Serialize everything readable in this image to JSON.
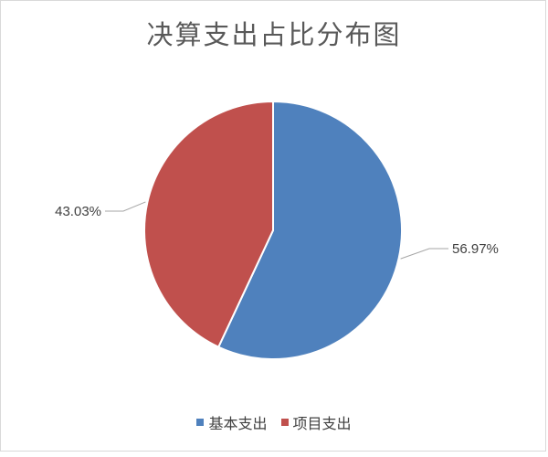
{
  "chart_data": {
    "type": "pie",
    "title": "决算支出占比分布图",
    "categories": [
      "基本支出",
      "项目支出"
    ],
    "values": [
      56.97,
      43.03
    ],
    "labels": [
      "56.97%",
      "43.03%"
    ],
    "colors": [
      "#4f81bd",
      "#c0504d"
    ],
    "legend_position": "bottom",
    "start_angle_deg": 0,
    "direction": "clockwise"
  },
  "legend": {
    "items": [
      {
        "label": "基本支出",
        "color": "#4f81bd"
      },
      {
        "label": "项目支出",
        "color": "#c0504d"
      }
    ]
  }
}
